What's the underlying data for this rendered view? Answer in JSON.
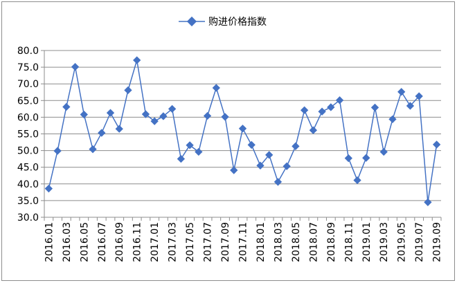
{
  "chart_data": {
    "type": "line",
    "series": [
      {
        "name": "购进价格指数",
        "color": "#4472c4",
        "values": [
          38.6,
          49.9,
          63.1,
          75.1,
          60.8,
          50.4,
          55.3,
          61.3,
          56.5,
          68.1,
          77.1,
          60.9,
          58.8,
          60.3,
          62.5,
          47.5,
          51.6,
          49.6,
          60.4,
          68.8,
          60.1,
          44.1,
          56.6,
          51.7,
          45.5,
          48.7,
          40.6,
          45.3,
          51.3,
          62.1,
          56.1,
          61.7,
          63.0,
          65.1,
          47.7,
          41.1,
          47.8,
          62.9,
          49.6,
          59.4,
          67.6,
          63.4,
          66.3,
          34.5,
          51.8
        ]
      }
    ],
    "x_tick_labels": [
      "2016.01",
      "2016.03",
      "2016.05",
      "2016.07",
      "2016.09",
      "2016.11",
      "2017.01",
      "2017.03",
      "2017.05",
      "2017.07",
      "2017.09",
      "2017.11",
      "2018.01",
      "2018.03",
      "2018.05",
      "2018.07",
      "2018.09",
      "2018.11",
      "2019.01",
      "2019.03",
      "2019.05",
      "2019.07",
      "2019.09"
    ],
    "y_ticks": [
      "30.0",
      "35.0",
      "40.0",
      "45.0",
      "50.0",
      "55.0",
      "60.0",
      "65.0",
      "70.0",
      "75.0",
      "80.0"
    ],
    "ylim": [
      30,
      80
    ],
    "grid": "horizontal",
    "legend_position": "top-center"
  }
}
